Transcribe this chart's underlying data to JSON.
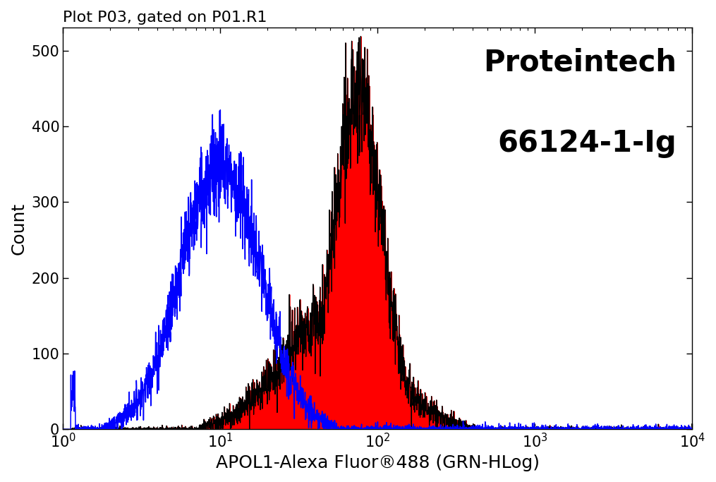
{
  "title": "Plot P03, gated on P01.R1",
  "xlabel": "APOL1-Alexa Fluor®488 (GRN-HLog)",
  "ylabel": "Count",
  "watermark_line1": "Proteintech",
  "watermark_line2": "66124-1-Ig",
  "xlim": [
    1.0,
    10000.0
  ],
  "ylim": [
    0,
    530
  ],
  "yticks": [
    0,
    100,
    200,
    300,
    400,
    500
  ],
  "background_color": "#ffffff",
  "blue_color": "#0000ff",
  "red_color": "#ff0000",
  "black_color": "#000000",
  "title_fontsize": 16,
  "label_fontsize": 18,
  "watermark_fontsize": 30,
  "tick_fontsize": 15
}
